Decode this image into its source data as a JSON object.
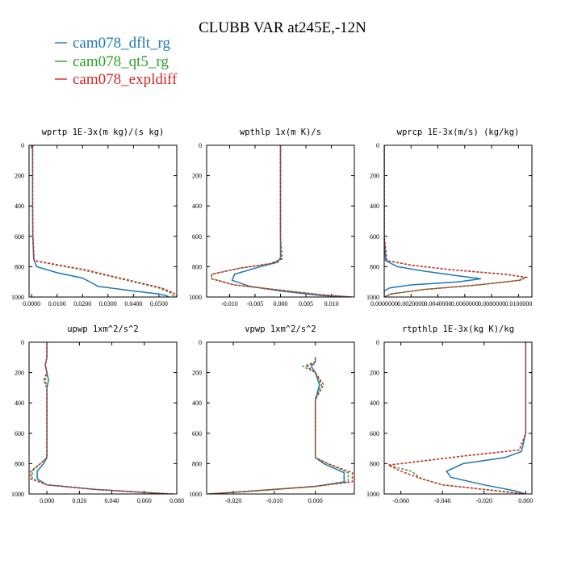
{
  "title": "CLUBB VAR at245E,-12N",
  "legend": [
    {
      "name": "cam078_dflt_rg",
      "color": "#1f77b4"
    },
    {
      "name": "cam078_qt5_rg",
      "color": "#2ca02c"
    },
    {
      "name": "cam078_expldiff",
      "color": "#d62728"
    }
  ],
  "chart_data": [
    {
      "type": "line",
      "title": "wprtp  1E-3x(m kg)/(s kg)",
      "xlim": [
        -0.001,
        0.057
      ],
      "ylim": [
        1000,
        0
      ],
      "xticks": [
        0.0,
        0.01,
        0.02,
        0.03,
        0.04,
        0.05
      ],
      "xticklabels": [
        "0.0000",
        "0.0100",
        "0.0200",
        "0.0300",
        "0.0400",
        "0.0500"
      ],
      "yticks": [
        0,
        200,
        400,
        600,
        800,
        1000
      ],
      "series": [
        {
          "name": "cam078_dflt_rg",
          "dashed": false,
          "x": [
            0.0004,
            0.0004,
            0.0004,
            0.0005,
            0.0008,
            0.002,
            0.01,
            0.02,
            0.024,
            0.026,
            0.04,
            0.05,
            0.053,
            0.054
          ],
          "y": [
            0,
            200,
            400,
            600,
            750,
            800,
            840,
            875,
            910,
            930,
            960,
            980,
            992,
            1000
          ]
        },
        {
          "name": "cam078_qt5_rg",
          "dashed": true,
          "x": [
            0.0004,
            0.0004,
            0.0004,
            0.0005,
            0.001,
            0.01,
            0.02,
            0.03,
            0.04,
            0.05,
            0.055,
            0.056
          ],
          "y": [
            0,
            200,
            400,
            600,
            760,
            790,
            820,
            860,
            900,
            940,
            975,
            1000
          ]
        },
        {
          "name": "cam078_expldiff",
          "dashed": true,
          "x": [
            0.0004,
            0.0004,
            0.0004,
            0.0005,
            0.001,
            0.011,
            0.021,
            0.031,
            0.041,
            0.051,
            0.056,
            0.057
          ],
          "y": [
            0,
            200,
            400,
            600,
            760,
            790,
            820,
            860,
            900,
            940,
            975,
            1000
          ]
        }
      ]
    },
    {
      "type": "line",
      "title": "wpthlp  1x(m K)/s",
      "xlim": [
        -0.0145,
        0.0145
      ],
      "ylim": [
        1000,
        0
      ],
      "xticks": [
        -0.01,
        -0.005,
        0.0,
        0.005,
        0.01
      ],
      "xticklabels": [
        "-0.010",
        "-0.005",
        "0.000",
        "0.005",
        "0.010"
      ],
      "yticks": [
        0,
        200,
        400,
        600,
        800,
        1000
      ],
      "series": [
        {
          "name": "cam078_dflt_rg",
          "dashed": false,
          "x": [
            0.0,
            0.0,
            0.0,
            0.0,
            0.0,
            -0.0005,
            -0.004,
            -0.009,
            -0.0095,
            -0.006,
            0.0,
            0.008,
            0.014
          ],
          "y": [
            0,
            200,
            400,
            600,
            740,
            770,
            800,
            850,
            890,
            930,
            960,
            990,
            1000
          ]
        },
        {
          "name": "cam078_qt5_rg",
          "dashed": true,
          "x": [
            0.0,
            0.0,
            0.0,
            0.0,
            0.0001,
            -0.002,
            -0.008,
            -0.0135,
            -0.0135,
            -0.009,
            0.0,
            0.008,
            0.014
          ],
          "y": [
            0,
            200,
            400,
            600,
            750,
            780,
            810,
            850,
            880,
            920,
            955,
            985,
            1000
          ]
        },
        {
          "name": "cam078_expldiff",
          "dashed": true,
          "x": [
            0.0,
            0.0,
            0.0,
            0.0,
            0.0003,
            -0.002,
            -0.008,
            -0.0135,
            -0.0135,
            -0.009,
            0.0,
            0.008,
            0.014
          ],
          "y": [
            0,
            200,
            400,
            600,
            750,
            780,
            810,
            850,
            880,
            920,
            955,
            985,
            1000
          ]
        }
      ]
    },
    {
      "type": "line",
      "title": "wprcp  1E-3x(m/s) (kg/kg)",
      "xlim": [
        0.0,
        0.011
      ],
      "ylim": [
        1000,
        0
      ],
      "xticks": [
        0.0,
        0.002,
        0.004,
        0.006,
        0.008,
        0.01
      ],
      "xticklabels": [
        "0.0000000",
        "0.0020000",
        "0.0040000",
        "0.0060000",
        "0.0080000",
        "0.0100000"
      ],
      "yticks": [
        0,
        200,
        400,
        600,
        800,
        1000
      ],
      "series": [
        {
          "name": "cam078_dflt_rg",
          "dashed": false,
          "x": [
            0.0,
            0.0,
            0.0,
            0.0,
            0.0001,
            0.001,
            0.003,
            0.0055,
            0.0072,
            0.0055,
            0.002,
            0.0004,
            0.0,
            0.0
          ],
          "y": [
            0,
            200,
            400,
            600,
            760,
            800,
            830,
            860,
            880,
            900,
            920,
            940,
            960,
            1000
          ]
        },
        {
          "name": "cam078_qt5_rg",
          "dashed": true,
          "x": [
            0.0,
            0.0,
            0.0,
            0.0,
            0.0002,
            0.002,
            0.005,
            0.009,
            0.0105,
            0.01,
            0.007,
            0.003,
            0.0005,
            0.0
          ],
          "y": [
            0,
            200,
            400,
            600,
            760,
            790,
            820,
            850,
            870,
            890,
            920,
            950,
            980,
            1000
          ]
        },
        {
          "name": "cam078_expldiff",
          "dashed": true,
          "x": [
            0.0,
            0.0,
            0.0,
            0.0,
            0.0002,
            0.002,
            0.005,
            0.009,
            0.0106,
            0.0101,
            0.007,
            0.003,
            0.0005,
            0.0
          ],
          "y": [
            0,
            200,
            400,
            600,
            760,
            790,
            820,
            850,
            870,
            890,
            920,
            950,
            980,
            1000
          ]
        }
      ]
    },
    {
      "type": "line",
      "title": "upwp  1xm^2/s^2",
      "xlim": [
        -0.011,
        0.08
      ],
      "ylim": [
        1000,
        0
      ],
      "xticks": [
        0.0,
        0.02,
        0.04,
        0.06,
        0.08
      ],
      "xticklabels": [
        "0.000",
        "0.020",
        "0.040",
        "0.060",
        "0.080"
      ],
      "yticks": [
        0,
        200,
        400,
        600,
        800,
        1000
      ],
      "series": [
        {
          "name": "cam078_dflt_rg",
          "dashed": false,
          "x": [
            0.0,
            0.0,
            -0.001,
            0.0,
            0.001,
            0.0,
            0.0,
            0.0,
            0.0,
            -0.002,
            -0.006,
            -0.006,
            0.0,
            0.03,
            0.06,
            0.075
          ],
          "y": [
            0,
            100,
            150,
            200,
            250,
            300,
            400,
            600,
            760,
            800,
            850,
            900,
            940,
            970,
            990,
            1000
          ]
        },
        {
          "name": "cam078_qt5_rg",
          "dashed": true,
          "x": [
            0.0,
            0.0,
            -0.001,
            0.0,
            -0.001,
            0.0,
            0.0,
            0.0,
            0.0,
            -0.004,
            -0.009,
            -0.009,
            0.0,
            0.03,
            0.06,
            0.077
          ],
          "y": [
            0,
            100,
            150,
            200,
            250,
            300,
            400,
            600,
            760,
            800,
            850,
            900,
            940,
            970,
            990,
            1000
          ]
        },
        {
          "name": "cam078_expldiff",
          "dashed": true,
          "x": [
            0.0,
            0.0,
            -0.001,
            0.0,
            -0.002,
            0.0,
            0.0,
            0.0,
            0.0,
            -0.004,
            -0.01,
            -0.01,
            0.0,
            0.03,
            0.06,
            0.078
          ],
          "y": [
            0,
            100,
            150,
            200,
            250,
            300,
            400,
            600,
            760,
            800,
            850,
            900,
            940,
            970,
            990,
            1000
          ]
        }
      ]
    },
    {
      "type": "line",
      "title": "vpwp  1xm^2/s^2",
      "xlim": [
        -0.0265,
        0.0095
      ],
      "ylim": [
        1000,
        0
      ],
      "xticks": [
        -0.02,
        -0.01,
        0.0
      ],
      "xticklabels": [
        "-0.020",
        "-0.010",
        "0.000"
      ],
      "yticks": [
        0,
        200,
        400,
        600,
        800,
        1000
      ],
      "series": [
        {
          "name": "cam078_dflt_rg",
          "dashed": false,
          "x": [
            0.0,
            0.0,
            -0.001,
            0.0,
            0.001,
            0.0,
            0.0,
            0.0,
            0.002,
            0.007,
            0.007,
            0.0,
            -0.015,
            -0.026
          ],
          "y": [
            100,
            130,
            160,
            200,
            280,
            380,
            500,
            760,
            800,
            860,
            920,
            950,
            980,
            1000
          ]
        },
        {
          "name": "cam078_qt5_rg",
          "dashed": true,
          "x": [
            0.0,
            0.0,
            -0.003,
            0.0,
            0.0015,
            0.0,
            0.0,
            0.0,
            0.003,
            0.008,
            0.008,
            0.0,
            -0.015,
            -0.026
          ],
          "y": [
            100,
            130,
            160,
            200,
            280,
            380,
            500,
            760,
            800,
            860,
            920,
            950,
            980,
            1000
          ]
        },
        {
          "name": "cam078_expldiff",
          "dashed": true,
          "x": [
            0.0,
            0.0,
            -0.002,
            0.0,
            0.002,
            0.0,
            0.0,
            0.0,
            0.003,
            0.009,
            0.009,
            0.0,
            -0.015,
            -0.026
          ],
          "y": [
            100,
            130,
            160,
            200,
            280,
            380,
            500,
            760,
            800,
            860,
            920,
            950,
            980,
            1000
          ]
        }
      ]
    },
    {
      "type": "line",
      "title": "rtpthlp  1E-3x(kg K)/kg",
      "xlim": [
        -0.068,
        0.003
      ],
      "ylim": [
        1000,
        0
      ],
      "xticks": [
        -0.06,
        -0.04,
        -0.02,
        0.0
      ],
      "xticklabels": [
        "-0.060",
        "-0.040",
        "-0.020",
        "0.000"
      ],
      "yticks": [
        0,
        200,
        400,
        600,
        800,
        1000
      ],
      "series": [
        {
          "name": "cam078_dflt_rg",
          "dashed": false,
          "x": [
            0.0,
            0.0,
            0.0,
            0.0,
            -0.002,
            -0.01,
            -0.03,
            -0.038,
            -0.036,
            -0.02,
            -0.005,
            0.0
          ],
          "y": [
            0,
            200,
            400,
            600,
            720,
            760,
            800,
            850,
            890,
            940,
            980,
            1000
          ]
        },
        {
          "name": "cam078_qt5_rg",
          "dashed": true,
          "x": [
            0.0,
            0.0,
            0.0,
            0.0,
            -0.003,
            -0.03,
            -0.066,
            -0.055,
            -0.05,
            -0.04,
            -0.01,
            0.0
          ],
          "y": [
            0,
            200,
            400,
            600,
            710,
            750,
            810,
            850,
            900,
            940,
            985,
            1000
          ]
        },
        {
          "name": "cam078_expldiff",
          "dashed": true,
          "x": [
            0.0,
            0.0,
            0.0,
            0.0,
            -0.003,
            -0.03,
            -0.066,
            -0.06,
            -0.05,
            -0.04,
            -0.01,
            0.0
          ],
          "y": [
            0,
            200,
            400,
            600,
            710,
            750,
            810,
            850,
            900,
            940,
            985,
            1000
          ]
        }
      ]
    }
  ]
}
